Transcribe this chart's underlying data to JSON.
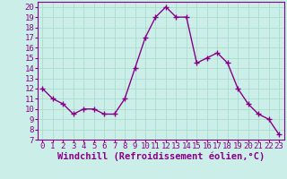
{
  "x": [
    0,
    1,
    2,
    3,
    4,
    5,
    6,
    7,
    8,
    9,
    10,
    11,
    12,
    13,
    14,
    15,
    16,
    17,
    18,
    19,
    20,
    21,
    22,
    23
  ],
  "y": [
    12,
    11,
    10.5,
    9.5,
    10,
    10,
    9.5,
    9.5,
    11,
    14,
    17,
    19,
    20,
    19,
    19,
    14.5,
    15,
    15.5,
    14.5,
    12,
    10.5,
    9.5,
    9,
    7.5
  ],
  "line_color": "#880088",
  "marker": "+",
  "marker_size": 4,
  "marker_linewidth": 1.0,
  "bg_color": "#cceee8",
  "grid_color": "#aaddcc",
  "xlabel": "Windchill (Refroidissement éolien,°C)",
  "xlabel_fontsize": 7.5,
  "xlim": [
    -0.5,
    23.5
  ],
  "ylim": [
    7,
    20.5
  ],
  "yticks": [
    7,
    8,
    9,
    10,
    11,
    12,
    13,
    14,
    15,
    16,
    17,
    18,
    19,
    20
  ],
  "xticks": [
    0,
    1,
    2,
    3,
    4,
    5,
    6,
    7,
    8,
    9,
    10,
    11,
    12,
    13,
    14,
    15,
    16,
    17,
    18,
    19,
    20,
    21,
    22,
    23
  ],
  "tick_fontsize": 6.5,
  "linewidth": 1.0,
  "spine_color": "#880088",
  "tick_color": "#880088",
  "label_color": "#880088"
}
